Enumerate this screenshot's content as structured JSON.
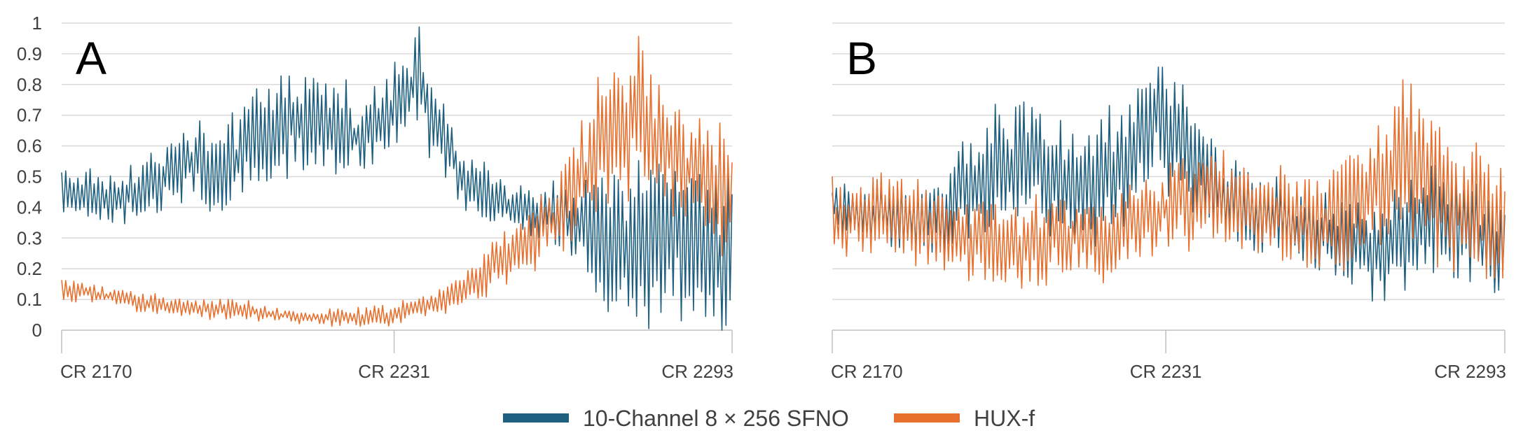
{
  "colors": {
    "series_blue": "#1f5f7f",
    "series_orange": "#e8702f",
    "grid": "#d9d9d9",
    "text": "#404040"
  },
  "legend": [
    {
      "name": "10-Channel 8 × 256 SFNO",
      "color": "#1f5f7f"
    },
    {
      "name": "HUX-f",
      "color": "#e8702f"
    }
  ],
  "chart_data": [
    {
      "type": "line",
      "panel_label": "A",
      "ylim": [
        0,
        1
      ],
      "yticks": [
        "0",
        "0.1",
        "0.2",
        "0.3",
        "0.4",
        "0.5",
        "0.6",
        "0.7",
        "0.8",
        "0.9",
        "1"
      ],
      "xlim": [
        2170,
        2293
      ],
      "xticks": [
        {
          "value": 2170,
          "label": "CR 2170"
        },
        {
          "value": 2231,
          "label": "CR 2231"
        },
        {
          "value": 2293,
          "label": "CR 2293"
        }
      ],
      "grid": true,
      "legend_position": "bottom",
      "series": [
        {
          "name": "10-Channel 8 × 256 SFNO",
          "color": "#1f5f7f",
          "x": [
            2170,
            2175,
            2180,
            2185,
            2190,
            2195,
            2200,
            2205,
            2210,
            2215,
            2220,
            2225,
            2230,
            2235,
            2240,
            2245,
            2250,
            2255,
            2260,
            2265,
            2270,
            2275,
            2280,
            2285,
            2290,
            2293
          ],
          "y": [
            0.46,
            0.44,
            0.42,
            0.46,
            0.52,
            0.55,
            0.5,
            0.62,
            0.66,
            0.7,
            0.68,
            0.62,
            0.72,
            0.82,
            0.62,
            0.45,
            0.42,
            0.39,
            0.36,
            0.33,
            0.3,
            0.28,
            0.28,
            0.29,
            0.26,
            0.24
          ],
          "amplitude": [
            0.08,
            0.08,
            0.09,
            0.1,
            0.1,
            0.12,
            0.14,
            0.16,
            0.16,
            0.14,
            0.14,
            0.12,
            0.14,
            0.18,
            0.1,
            0.1,
            0.08,
            0.1,
            0.12,
            0.15,
            0.22,
            0.26,
            0.27,
            0.26,
            0.25,
            0.25
          ]
        },
        {
          "name": "HUX-f",
          "color": "#e8702f",
          "x": [
            2170,
            2175,
            2180,
            2185,
            2190,
            2195,
            2200,
            2205,
            2210,
            2215,
            2220,
            2225,
            2230,
            2235,
            2240,
            2245,
            2250,
            2255,
            2260,
            2265,
            2270,
            2275,
            2280,
            2285,
            2290,
            2293
          ],
          "y": [
            0.14,
            0.12,
            0.11,
            0.09,
            0.08,
            0.07,
            0.07,
            0.06,
            0.05,
            0.04,
            0.04,
            0.04,
            0.05,
            0.07,
            0.09,
            0.15,
            0.22,
            0.28,
            0.36,
            0.48,
            0.62,
            0.68,
            0.6,
            0.52,
            0.46,
            0.45
          ],
          "amplitude": [
            0.04,
            0.03,
            0.03,
            0.03,
            0.03,
            0.03,
            0.03,
            0.03,
            0.02,
            0.02,
            0.03,
            0.03,
            0.03,
            0.03,
            0.04,
            0.06,
            0.08,
            0.1,
            0.12,
            0.18,
            0.24,
            0.26,
            0.22,
            0.2,
            0.18,
            0.2
          ]
        }
      ]
    },
    {
      "type": "line",
      "panel_label": "B",
      "ylim": [
        0,
        1
      ],
      "yticks": [
        "0",
        "0.1",
        "0.2",
        "0.3",
        "0.4",
        "0.5",
        "0.6",
        "0.7",
        "0.8",
        "0.9",
        "1"
      ],
      "xlim": [
        2170,
        2293
      ],
      "xticks": [
        {
          "value": 2170,
          "label": "CR 2170"
        },
        {
          "value": 2231,
          "label": "CR 2231"
        },
        {
          "value": 2293,
          "label": "CR 2293"
        }
      ],
      "grid": true,
      "legend_position": "bottom",
      "series": [
        {
          "name": "10-Channel 8 × 256 SFNO",
          "color": "#1f5f7f",
          "x": [
            2170,
            2175,
            2180,
            2185,
            2190,
            2195,
            2200,
            2205,
            2210,
            2215,
            2220,
            2225,
            2230,
            2235,
            2240,
            2245,
            2250,
            2255,
            2260,
            2265,
            2270,
            2275,
            2280,
            2285,
            2290,
            2293
          ],
          "y": [
            0.4,
            0.38,
            0.37,
            0.36,
            0.38,
            0.45,
            0.52,
            0.56,
            0.52,
            0.45,
            0.5,
            0.58,
            0.7,
            0.6,
            0.45,
            0.4,
            0.36,
            0.34,
            0.3,
            0.28,
            0.26,
            0.32,
            0.36,
            0.32,
            0.28,
            0.26
          ],
          "amplitude": [
            0.08,
            0.09,
            0.1,
            0.11,
            0.12,
            0.16,
            0.2,
            0.2,
            0.18,
            0.16,
            0.18,
            0.2,
            0.2,
            0.18,
            0.14,
            0.12,
            0.12,
            0.12,
            0.12,
            0.14,
            0.16,
            0.18,
            0.18,
            0.17,
            0.17,
            0.18
          ]
        },
        {
          "name": "HUX-f",
          "color": "#e8702f",
          "x": [
            2170,
            2175,
            2180,
            2185,
            2190,
            2195,
            2200,
            2205,
            2210,
            2215,
            2220,
            2225,
            2230,
            2235,
            2240,
            2245,
            2250,
            2255,
            2260,
            2265,
            2270,
            2275,
            2280,
            2285,
            2290,
            2293
          ],
          "y": [
            0.38,
            0.36,
            0.38,
            0.36,
            0.34,
            0.32,
            0.3,
            0.28,
            0.3,
            0.32,
            0.3,
            0.34,
            0.38,
            0.42,
            0.44,
            0.42,
            0.38,
            0.36,
            0.34,
            0.4,
            0.48,
            0.56,
            0.48,
            0.4,
            0.36,
            0.36
          ],
          "amplitude": [
            0.12,
            0.12,
            0.12,
            0.14,
            0.14,
            0.14,
            0.14,
            0.14,
            0.14,
            0.14,
            0.14,
            0.14,
            0.14,
            0.14,
            0.14,
            0.14,
            0.14,
            0.16,
            0.16,
            0.18,
            0.22,
            0.26,
            0.22,
            0.2,
            0.2,
            0.2
          ]
        }
      ]
    }
  ]
}
